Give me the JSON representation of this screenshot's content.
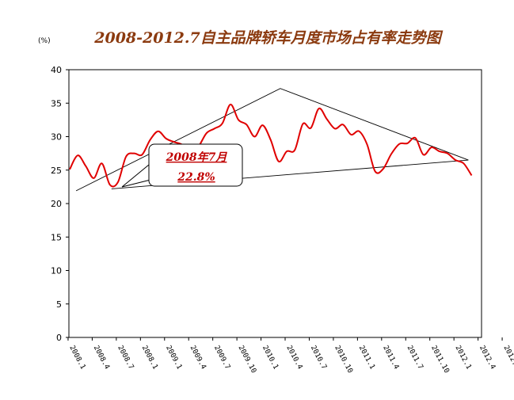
{
  "chart_data": {
    "type": "line",
    "title": "2008-2012.7自主品牌轿车月度市场占有率走势图",
    "unit": "(%)",
    "ylim": [
      0,
      40
    ],
    "yticks": [
      0,
      5,
      10,
      15,
      20,
      25,
      30,
      35,
      40
    ],
    "x_tick_labels": [
      "2008.1",
      "2008.4",
      "2008.7",
      "2008.1",
      "2009.1",
      "2009.4",
      "2009.7",
      "2009.10",
      "2010.1",
      "2010.4",
      "2010.7",
      "2010.10",
      "2011.1",
      "2011.4",
      "2011.7",
      "2011.10",
      "2012.1",
      "2012.4",
      "2012.7"
    ],
    "grid": false,
    "legend": "none",
    "series": [
      {
        "color": "#e00000",
        "values": [
          25.1,
          27.2,
          25.6,
          23.8,
          26.0,
          22.8,
          23.2,
          27.0,
          27.5,
          27.3,
          29.5,
          30.8,
          29.7,
          29.2,
          28.8,
          27.8,
          28.5,
          30.5,
          31.2,
          32.0,
          34.8,
          32.5,
          31.8,
          30.0,
          31.7,
          29.5,
          26.3,
          27.8,
          28.0,
          31.9,
          31.3,
          34.2,
          32.6,
          31.2,
          31.8,
          30.3,
          30.8,
          28.8,
          24.8,
          25.2,
          27.4,
          28.9,
          29.0,
          29.8,
          27.3,
          28.4,
          27.8,
          27.5,
          26.5,
          26.0,
          24.2
        ]
      }
    ],
    "trend_lines": [
      {
        "points": [
          [
            0.8,
            21.9
          ],
          [
            26.2,
            37.2
          ],
          [
            49.6,
            26.5
          ]
        ]
      },
      {
        "points": [
          [
            5.2,
            22.2
          ],
          [
            49.6,
            26.5
          ]
        ]
      }
    ],
    "annotation": {
      "line1": "2008年7月",
      "line2": "22.8%",
      "at": [
        5,
        22.8
      ]
    }
  }
}
